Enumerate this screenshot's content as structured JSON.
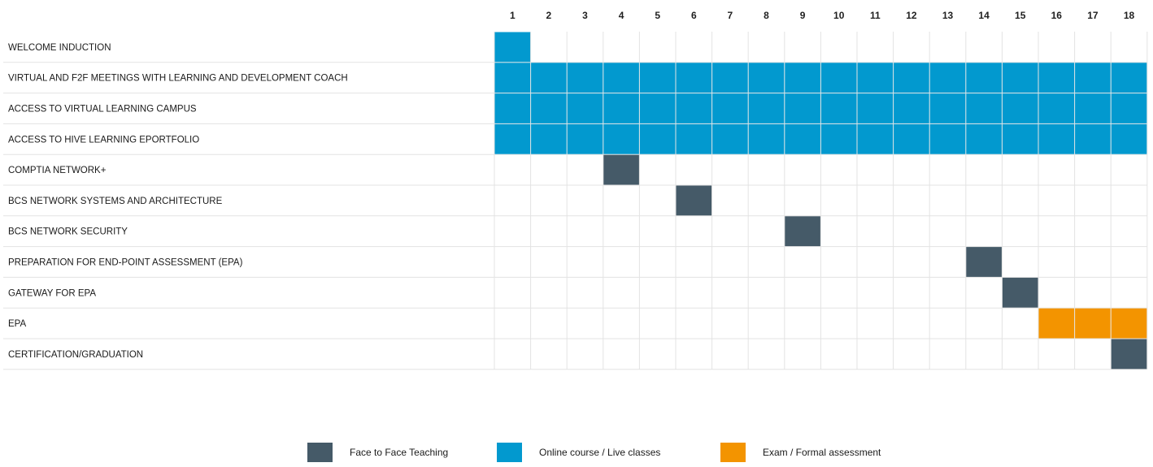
{
  "chart_data": {
    "type": "gantt",
    "title": "",
    "columns": [
      "1",
      "2",
      "3",
      "4",
      "5",
      "6",
      "7",
      "8",
      "9",
      "10",
      "11",
      "12",
      "13",
      "14",
      "15",
      "16",
      "17",
      "18"
    ],
    "colors": {
      "face_to_face": "#455a68",
      "online": "#0299cf",
      "exam": "#f39400"
    },
    "tasks": [
      {
        "label": "WELCOME INDUCTION",
        "category": "online",
        "start": 1,
        "end": 1
      },
      {
        "label": "VIRTUAL AND F2F MEETINGS WITH LEARNING AND DEVELOPMENT COACH",
        "category": "online",
        "start": 1,
        "end": 18
      },
      {
        "label": "ACCESS TO VIRTUAL LEARNING CAMPUS",
        "category": "online",
        "start": 1,
        "end": 18
      },
      {
        "label": "ACCESS TO HIVE LEARNING EPORTFOLIO",
        "category": "online",
        "start": 1,
        "end": 18
      },
      {
        "label": "COMPTIA NETWORK+",
        "category": "face_to_face",
        "start": 4,
        "end": 4
      },
      {
        "label": "BCS NETWORK SYSTEMS AND ARCHITECTURE",
        "category": "face_to_face",
        "start": 6,
        "end": 6
      },
      {
        "label": "BCS NETWORK SECURITY",
        "category": "face_to_face",
        "start": 9,
        "end": 9
      },
      {
        "label": "PREPARATION FOR END-POINT ASSESSMENT (EPA)",
        "category": "face_to_face",
        "start": 14,
        "end": 14
      },
      {
        "label": "GATEWAY FOR EPA",
        "category": "face_to_face",
        "start": 15,
        "end": 15
      },
      {
        "label": "EPA",
        "category": "exam",
        "start": 16,
        "end": 18
      },
      {
        "label": "CERTIFICATION/GRADUATION",
        "category": "face_to_face",
        "start": 18,
        "end": 18
      }
    ],
    "legend": [
      {
        "key": "face_to_face",
        "label": "Face to Face Teaching"
      },
      {
        "key": "online",
        "label": "Online course / Live classes"
      },
      {
        "key": "exam",
        "label": "Exam / Formal assessment"
      }
    ]
  }
}
